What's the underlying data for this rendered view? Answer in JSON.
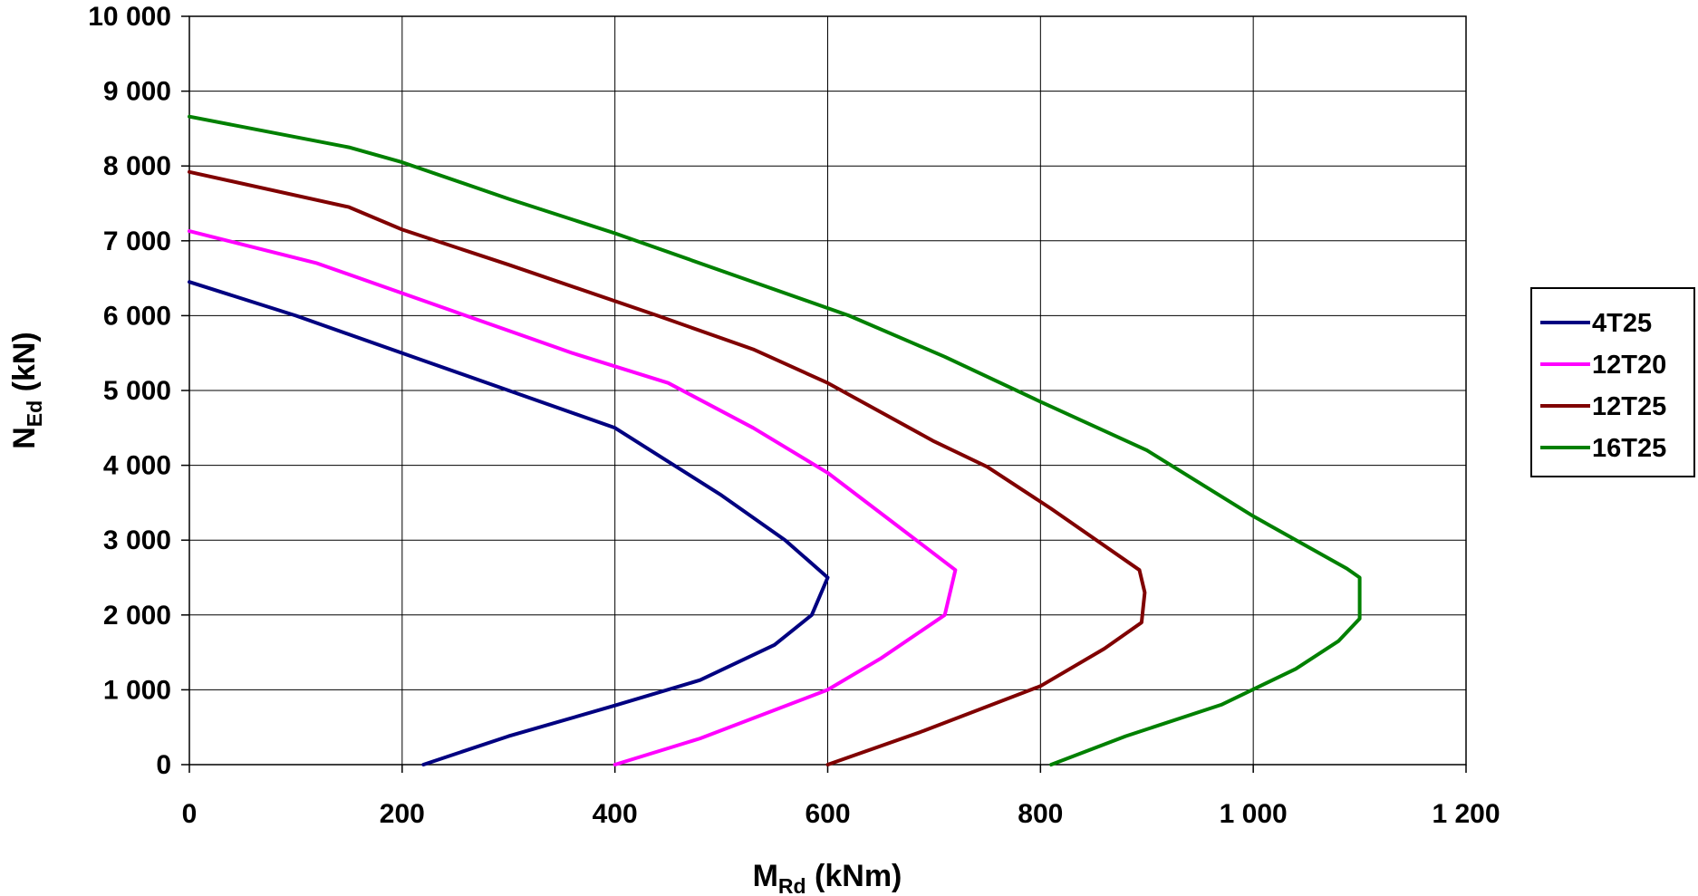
{
  "chart_data": {
    "type": "line",
    "title": "",
    "xlabel": {
      "main": "M",
      "sub": "Rd",
      "unit": " (kNm)"
    },
    "ylabel": {
      "main": "N",
      "sub": "Ed",
      "unit": " (kN)"
    },
    "xlim": [
      0,
      1200
    ],
    "ylim": [
      0,
      10000
    ],
    "xticks": [
      0,
      200,
      400,
      600,
      800,
      1000,
      1200
    ],
    "xtick_labels": [
      "0",
      "200",
      "400",
      "600",
      "800",
      "1 000",
      "1 200"
    ],
    "yticks": [
      0,
      1000,
      2000,
      3000,
      4000,
      5000,
      6000,
      7000,
      8000,
      9000,
      10000
    ],
    "ytick_labels": [
      "0",
      "1 000",
      "2 000",
      "3 000",
      "4 000",
      "5 000",
      "6 000",
      "7 000",
      "8 000",
      "9 000",
      "10 000"
    ],
    "grid": true,
    "legend_position": "right",
    "series": [
      {
        "name": "4T25",
        "color": "#000080",
        "points": [
          [
            220,
            0
          ],
          [
            300,
            380
          ],
          [
            400,
            790
          ],
          [
            480,
            1130
          ],
          [
            550,
            1600
          ],
          [
            585,
            2000
          ],
          [
            600,
            2500
          ],
          [
            560,
            3000
          ],
          [
            500,
            3600
          ],
          [
            400,
            4500
          ],
          [
            300,
            5000
          ],
          [
            220,
            5400
          ],
          [
            100,
            6000
          ],
          [
            0,
            6450
          ]
        ]
      },
      {
        "name": "12T20",
        "color": "#ff00ff",
        "points": [
          [
            400,
            0
          ],
          [
            480,
            350
          ],
          [
            600,
            1000
          ],
          [
            650,
            1420
          ],
          [
            710,
            2000
          ],
          [
            720,
            2600
          ],
          [
            660,
            3250
          ],
          [
            600,
            3900
          ],
          [
            530,
            4500
          ],
          [
            450,
            5100
          ],
          [
            360,
            5500
          ],
          [
            250,
            6050
          ],
          [
            120,
            6700
          ],
          [
            0,
            7130
          ]
        ]
      },
      {
        "name": "12T25",
        "color": "#800000",
        "points": [
          [
            600,
            0
          ],
          [
            690,
            450
          ],
          [
            800,
            1050
          ],
          [
            860,
            1550
          ],
          [
            895,
            1900
          ],
          [
            898,
            2300
          ],
          [
            893,
            2600
          ],
          [
            810,
            3420
          ],
          [
            750,
            3980
          ],
          [
            700,
            4320
          ],
          [
            600,
            5100
          ],
          [
            530,
            5550
          ],
          [
            440,
            6000
          ],
          [
            300,
            6680
          ],
          [
            200,
            7150
          ],
          [
            150,
            7450
          ],
          [
            0,
            7920
          ]
        ]
      },
      {
        "name": "16T25",
        "color": "#008000",
        "points": [
          [
            810,
            0
          ],
          [
            880,
            380
          ],
          [
            970,
            800
          ],
          [
            1040,
            1280
          ],
          [
            1080,
            1650
          ],
          [
            1100,
            1950
          ],
          [
            1100,
            2500
          ],
          [
            1088,
            2620
          ],
          [
            1000,
            3320
          ],
          [
            900,
            4200
          ],
          [
            800,
            4850
          ],
          [
            710,
            5450
          ],
          [
            620,
            6000
          ],
          [
            520,
            6500
          ],
          [
            400,
            7100
          ],
          [
            300,
            7560
          ],
          [
            200,
            8050
          ],
          [
            150,
            8250
          ],
          [
            0,
            8660
          ]
        ]
      }
    ]
  }
}
